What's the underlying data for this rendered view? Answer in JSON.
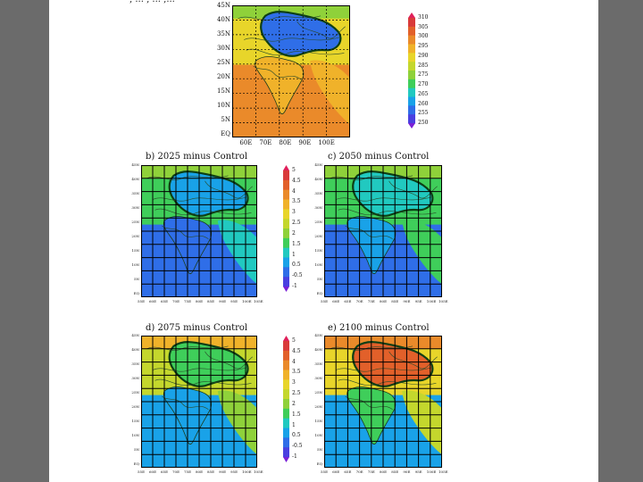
{
  "colors": {
    "background": "#6b6b6b",
    "slide": "#ffffff",
    "palette": [
      "#7a1fd6",
      "#4a40e0",
      "#2f6ee8",
      "#19a2e8",
      "#21c9c0",
      "#3fce5a",
      "#8fd13a",
      "#c4d72d",
      "#e8d52a",
      "#f0b22a",
      "#ea8a2a",
      "#e2602a",
      "#d93a3a",
      "#e0205a"
    ]
  },
  "top_panel": {
    "title": ", ... , ... ,... ",
    "lat_labels": [
      "45N",
      "40N",
      "35N",
      "30N",
      "25N",
      "20N",
      "15N",
      "10N",
      "5N",
      "EQ"
    ],
    "lon_labels": [
      "60E",
      "70E",
      "80E",
      "90E",
      "100E"
    ],
    "colorbar_labels": [
      "310",
      "305",
      "300",
      "295",
      "290",
      "285",
      "275",
      "270",
      "265",
      "260",
      "255",
      "250"
    ]
  },
  "diff_colorbar_labels": [
    "5",
    "4.5",
    "4",
    "3.5",
    "3",
    "2.5",
    "2",
    "1.5",
    "1",
    "0.5",
    "-0.5",
    "-1"
  ],
  "panels": {
    "b": {
      "title": "b) 2025 minus Control",
      "scheme": "cool"
    },
    "c": {
      "title": "c) 2050 minus Control",
      "scheme": "cool2"
    },
    "d": {
      "title": "d) 2075 minus Control",
      "scheme": "warm"
    },
    "e": {
      "title": "e) 2100 minus Control",
      "scheme": "hot"
    }
  },
  "small_lat_labels": [
    "45N",
    "40N",
    "35N",
    "30N",
    "25N",
    "20N",
    "15N",
    "10N",
    "5N",
    "EQ"
  ],
  "small_lon_labels": [
    "55E",
    "60E",
    "65E",
    "70E",
    "75E",
    "80E",
    "85E",
    "90E",
    "95E",
    "100E",
    "105E"
  ]
}
